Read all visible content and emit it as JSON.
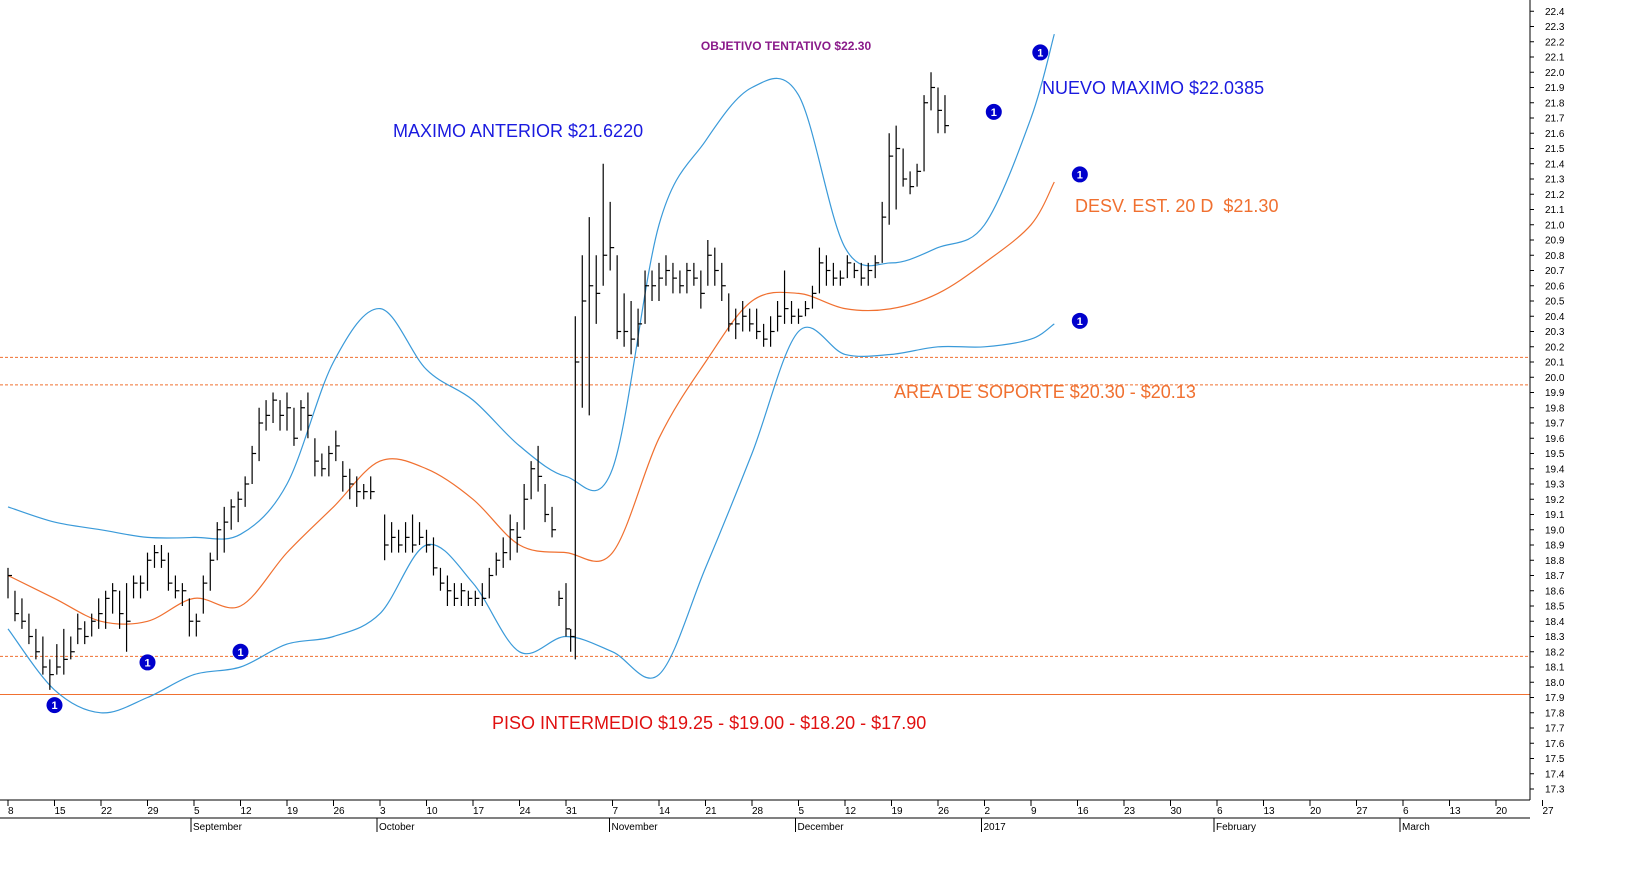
{
  "chart_data": {
    "type": "line",
    "title": "OBJETIVO TENTATIVO $22.30",
    "colors": {
      "background": "#ffffff",
      "bars": "#000000",
      "middle_band": "#f07030",
      "outer_bands": "#3a9ad9",
      "annotation_blue": "#1a1adf",
      "annotation_orange": "#f07030",
      "annotation_red": "#e01010",
      "title": "#8a1a8a",
      "marker": "#0000cc"
    },
    "y_axis": {
      "min": 17.3,
      "max": 22.6,
      "tick_step": 0.1,
      "position": "right"
    },
    "x_axis": {
      "day_labels": [
        "8",
        "15",
        "22",
        "29",
        "5",
        "12",
        "19",
        "26",
        "3",
        "10",
        "17",
        "24",
        "31",
        "7",
        "14",
        "21",
        "28",
        "5",
        "12",
        "19",
        "26",
        "2",
        "9",
        "16",
        "23",
        "30",
        "6",
        "13",
        "20",
        "27",
        "6",
        "13",
        "20",
        "27"
      ],
      "month_labels": [
        "September",
        "October",
        "November",
        "December",
        "2017",
        "February",
        "March"
      ]
    },
    "annotations": {
      "objetivo": "OBJETIVO TENTATIVO $22.30",
      "nuevo_maximo": "NUEVO MAXIMO $22.0385",
      "maximo_anterior": "MAXIMO ANTERIOR $21.6220",
      "desv_est": "DESV. EST. 20 D  $21.30",
      "area_soporte": "AREA DE SOPORTE $20.30 - $20.13",
      "piso": "PISO INTERMEDIO $19.25 - $19.00 - $18.20 - $17.90"
    },
    "horizontal_levels": [
      20.13,
      19.95,
      18.17,
      17.92
    ],
    "marker_label": "1",
    "markers": [
      {
        "week": 1,
        "price": 17.85
      },
      {
        "week": 3,
        "price": 18.13
      },
      {
        "week": 5,
        "price": 18.2
      },
      {
        "week": 21.2,
        "price": 21.74
      },
      {
        "week": 22.2,
        "price": 22.13
      },
      {
        "week": 23.05,
        "price": 21.33
      },
      {
        "week": 23.05,
        "price": 20.37
      }
    ],
    "series": [
      {
        "name": "upper",
        "points": [
          [
            0,
            19.15
          ],
          [
            1,
            19.05
          ],
          [
            2,
            19.0
          ],
          [
            3,
            18.95
          ],
          [
            4,
            18.95
          ],
          [
            5,
            18.97
          ],
          [
            6,
            19.3
          ],
          [
            7,
            20.1
          ],
          [
            8,
            20.45
          ],
          [
            9,
            20.05
          ],
          [
            10,
            19.85
          ],
          [
            11,
            19.55
          ],
          [
            12,
            19.35
          ],
          [
            13,
            19.4
          ],
          [
            14,
            21.0
          ],
          [
            15,
            21.55
          ],
          [
            16,
            21.9
          ],
          [
            17,
            21.85
          ],
          [
            18,
            20.85
          ],
          [
            19,
            20.75
          ],
          [
            20,
            20.85
          ],
          [
            21,
            21.0
          ],
          [
            22,
            21.7
          ],
          [
            22.5,
            22.25
          ]
        ]
      },
      {
        "name": "middle",
        "points": [
          [
            0,
            18.7
          ],
          [
            1,
            18.55
          ],
          [
            2,
            18.4
          ],
          [
            3,
            18.4
          ],
          [
            4,
            18.55
          ],
          [
            5,
            18.5
          ],
          [
            6,
            18.85
          ],
          [
            7,
            19.15
          ],
          [
            8,
            19.45
          ],
          [
            9,
            19.4
          ],
          [
            10,
            19.2
          ],
          [
            11,
            18.9
          ],
          [
            12,
            18.85
          ],
          [
            13,
            18.85
          ],
          [
            14,
            19.6
          ],
          [
            15,
            20.1
          ],
          [
            16,
            20.5
          ],
          [
            17,
            20.55
          ],
          [
            18,
            20.45
          ],
          [
            19,
            20.45
          ],
          [
            20,
            20.55
          ],
          [
            21,
            20.75
          ],
          [
            22,
            21.0
          ],
          [
            22.5,
            21.28
          ]
        ]
      },
      {
        "name": "lower",
        "points": [
          [
            0,
            18.35
          ],
          [
            1,
            17.95
          ],
          [
            2,
            17.8
          ],
          [
            3,
            17.9
          ],
          [
            4,
            18.05
          ],
          [
            5,
            18.1
          ],
          [
            6,
            18.25
          ],
          [
            7,
            18.3
          ],
          [
            8,
            18.45
          ],
          [
            9,
            18.9
          ],
          [
            10,
            18.65
          ],
          [
            11,
            18.2
          ],
          [
            12,
            18.3
          ],
          [
            13,
            18.2
          ],
          [
            14,
            18.05
          ],
          [
            15,
            18.75
          ],
          [
            16,
            19.5
          ],
          [
            17,
            20.3
          ],
          [
            18,
            20.15
          ],
          [
            19,
            20.15
          ],
          [
            20,
            20.2
          ],
          [
            21,
            20.2
          ],
          [
            22,
            20.25
          ],
          [
            22.5,
            20.35
          ]
        ]
      },
      {
        "name": "price",
        "bars": [
          [
            0.0,
            18.75,
            18.55,
            18.7
          ],
          [
            0.15,
            18.6,
            18.4,
            18.45
          ],
          [
            0.3,
            18.55,
            18.35,
            18.4
          ],
          [
            0.45,
            18.45,
            18.25,
            18.3
          ],
          [
            0.6,
            18.35,
            18.15,
            18.2
          ],
          [
            0.75,
            18.3,
            18.05,
            18.1
          ],
          [
            0.9,
            18.15,
            17.95,
            18.05
          ],
          [
            1.05,
            18.25,
            18.05,
            18.1
          ],
          [
            1.2,
            18.35,
            18.05,
            18.15
          ],
          [
            1.35,
            18.3,
            18.15,
            18.2
          ],
          [
            1.5,
            18.45,
            18.25,
            18.35
          ],
          [
            1.65,
            18.4,
            18.25,
            18.3
          ],
          [
            1.8,
            18.45,
            18.3,
            18.4
          ],
          [
            1.95,
            18.55,
            18.35,
            18.45
          ],
          [
            2.1,
            18.6,
            18.35,
            18.55
          ],
          [
            2.25,
            18.65,
            18.45,
            18.6
          ],
          [
            2.4,
            18.6,
            18.35,
            18.45
          ],
          [
            2.55,
            18.65,
            18.2,
            18.4
          ],
          [
            2.7,
            18.7,
            18.55,
            18.65
          ],
          [
            2.85,
            18.7,
            18.55,
            18.65
          ],
          [
            3.0,
            18.85,
            18.6,
            18.8
          ],
          [
            3.15,
            18.9,
            18.75,
            18.85
          ],
          [
            3.3,
            18.9,
            18.75,
            18.8
          ],
          [
            3.45,
            18.85,
            18.6,
            18.65
          ],
          [
            3.6,
            18.7,
            18.55,
            18.6
          ],
          [
            3.75,
            18.65,
            18.5,
            18.6
          ],
          [
            3.9,
            18.55,
            18.3,
            18.4
          ],
          [
            4.05,
            18.45,
            18.3,
            18.4
          ],
          [
            4.2,
            18.7,
            18.45,
            18.65
          ],
          [
            4.35,
            18.85,
            18.6,
            18.8
          ],
          [
            4.5,
            19.05,
            18.8,
            19.0
          ],
          [
            4.65,
            19.15,
            18.85,
            19.05
          ],
          [
            4.8,
            19.2,
            19.0,
            19.15
          ],
          [
            4.95,
            19.25,
            19.05,
            19.2
          ],
          [
            5.1,
            19.35,
            19.15,
            19.3
          ],
          [
            5.25,
            19.55,
            19.3,
            19.5
          ],
          [
            5.4,
            19.8,
            19.45,
            19.7
          ],
          [
            5.55,
            19.85,
            19.65,
            19.75
          ],
          [
            5.7,
            19.9,
            19.7,
            19.85
          ],
          [
            5.85,
            19.85,
            19.65,
            19.75
          ],
          [
            6.0,
            19.9,
            19.65,
            19.8
          ],
          [
            6.15,
            19.8,
            19.55,
            19.6
          ],
          [
            6.3,
            19.85,
            19.65,
            19.8
          ],
          [
            6.45,
            19.9,
            19.6,
            19.75
          ],
          [
            6.6,
            19.6,
            19.35,
            19.45
          ],
          [
            6.75,
            19.5,
            19.35,
            19.4
          ],
          [
            6.9,
            19.55,
            19.35,
            19.5
          ],
          [
            7.05,
            19.65,
            19.45,
            19.55
          ],
          [
            7.2,
            19.45,
            19.25,
            19.35
          ],
          [
            7.35,
            19.4,
            19.2,
            19.3
          ],
          [
            7.5,
            19.35,
            19.15,
            19.25
          ],
          [
            7.65,
            19.3,
            19.2,
            19.25
          ],
          [
            7.8,
            19.35,
            19.2,
            19.25
          ],
          [
            8.1,
            19.1,
            18.8,
            18.9
          ],
          [
            8.25,
            19.05,
            18.85,
            18.95
          ],
          [
            8.4,
            19.0,
            18.85,
            18.9
          ],
          [
            8.55,
            19.05,
            18.85,
            18.95
          ],
          [
            8.7,
            19.1,
            18.85,
            18.9
          ],
          [
            8.85,
            19.05,
            18.9,
            18.95
          ],
          [
            9.0,
            19.0,
            18.85,
            18.9
          ],
          [
            9.15,
            18.95,
            18.7,
            18.75
          ],
          [
            9.3,
            18.75,
            18.6,
            18.65
          ],
          [
            9.45,
            18.7,
            18.5,
            18.6
          ],
          [
            9.6,
            18.65,
            18.5,
            18.55
          ],
          [
            9.75,
            18.65,
            18.5,
            18.6
          ],
          [
            9.9,
            18.6,
            18.5,
            18.55
          ],
          [
            10.05,
            18.6,
            18.5,
            18.55
          ],
          [
            10.2,
            18.65,
            18.5,
            18.55
          ],
          [
            10.35,
            18.75,
            18.55,
            18.7
          ],
          [
            10.5,
            18.85,
            18.7,
            18.8
          ],
          [
            10.65,
            18.95,
            18.75,
            18.85
          ],
          [
            10.8,
            19.1,
            18.8,
            19.0
          ],
          [
            10.95,
            19.05,
            18.85,
            18.95
          ],
          [
            11.1,
            19.3,
            19.0,
            19.2
          ],
          [
            11.25,
            19.45,
            19.2,
            19.4
          ],
          [
            11.4,
            19.55,
            19.25,
            19.35
          ],
          [
            11.55,
            19.3,
            19.05,
            19.1
          ],
          [
            11.7,
            19.15,
            18.95,
            19.0
          ],
          [
            11.85,
            18.6,
            18.5,
            18.55
          ],
          [
            12.0,
            18.65,
            18.3,
            18.35
          ],
          [
            12.1,
            18.35,
            18.2,
            18.3
          ],
          [
            12.2,
            20.4,
            18.15,
            20.1
          ],
          [
            12.35,
            20.8,
            19.8,
            20.5
          ],
          [
            12.5,
            21.05,
            19.75,
            20.6
          ],
          [
            12.65,
            20.8,
            20.35,
            20.55
          ],
          [
            12.8,
            21.4,
            20.6,
            20.8
          ],
          [
            12.95,
            21.15,
            20.7,
            20.85
          ],
          [
            13.1,
            20.8,
            20.25,
            20.3
          ],
          [
            13.25,
            20.55,
            20.2,
            20.3
          ],
          [
            13.4,
            20.5,
            20.15,
            20.25
          ],
          [
            13.55,
            20.45,
            20.2,
            20.35
          ],
          [
            13.7,
            20.7,
            20.35,
            20.6
          ],
          [
            13.85,
            20.7,
            20.5,
            20.6
          ],
          [
            14.0,
            20.75,
            20.5,
            20.65
          ],
          [
            14.15,
            20.8,
            20.6,
            20.7
          ],
          [
            14.3,
            20.75,
            20.55,
            20.65
          ],
          [
            14.45,
            20.7,
            20.55,
            20.6
          ],
          [
            14.6,
            20.75,
            20.55,
            20.7
          ],
          [
            14.75,
            20.75,
            20.6,
            20.65
          ],
          [
            14.9,
            20.7,
            20.45,
            20.55
          ],
          [
            15.05,
            20.9,
            20.6,
            20.8
          ],
          [
            15.2,
            20.85,
            20.6,
            20.7
          ],
          [
            15.35,
            20.75,
            20.5,
            20.6
          ],
          [
            15.5,
            20.55,
            20.3,
            20.35
          ],
          [
            15.65,
            20.45,
            20.25,
            20.35
          ],
          [
            15.8,
            20.5,
            20.3,
            20.4
          ],
          [
            15.95,
            20.45,
            20.3,
            20.35
          ],
          [
            16.1,
            20.45,
            20.25,
            20.3
          ],
          [
            16.25,
            20.35,
            20.2,
            20.25
          ],
          [
            16.4,
            20.4,
            20.2,
            20.3
          ],
          [
            16.55,
            20.5,
            20.3,
            20.4
          ],
          [
            16.7,
            20.7,
            20.35,
            20.45
          ],
          [
            16.85,
            20.5,
            20.35,
            20.4
          ],
          [
            17.0,
            20.45,
            20.35,
            20.4
          ],
          [
            17.15,
            20.5,
            20.4,
            20.45
          ],
          [
            17.3,
            20.6,
            20.45,
            20.55
          ],
          [
            17.45,
            20.85,
            20.55,
            20.75
          ],
          [
            17.6,
            20.8,
            20.6,
            20.7
          ],
          [
            17.75,
            20.75,
            20.6,
            20.65
          ],
          [
            17.9,
            20.7,
            20.6,
            20.65
          ],
          [
            18.05,
            20.8,
            20.65,
            20.75
          ],
          [
            18.2,
            20.75,
            20.65,
            20.7
          ],
          [
            18.35,
            20.75,
            20.6,
            20.65
          ],
          [
            18.5,
            20.75,
            20.6,
            20.7
          ],
          [
            18.65,
            20.8,
            20.65,
            20.75
          ],
          [
            18.8,
            21.15,
            20.75,
            21.05
          ],
          [
            18.95,
            21.6,
            21.0,
            21.45
          ],
          [
            19.1,
            21.65,
            21.1,
            21.5
          ],
          [
            19.25,
            21.5,
            21.25,
            21.3
          ],
          [
            19.4,
            21.35,
            21.2,
            21.25
          ],
          [
            19.55,
            21.4,
            21.25,
            21.35
          ],
          [
            19.7,
            21.85,
            21.35,
            21.8
          ],
          [
            19.85,
            22.0,
            21.75,
            21.9
          ],
          [
            20.0,
            21.9,
            21.6,
            21.75
          ],
          [
            20.15,
            21.85,
            21.6,
            21.65
          ]
        ]
      }
    ]
  }
}
